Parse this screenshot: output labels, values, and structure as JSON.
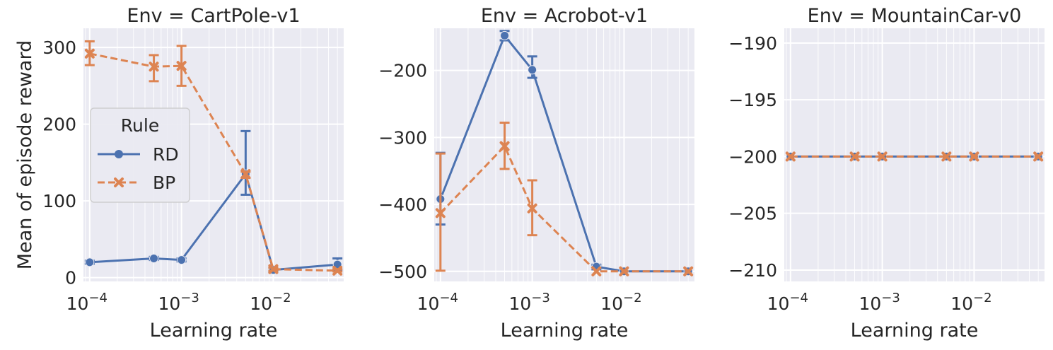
{
  "colors": {
    "background": "#ffffff",
    "panel": "#eaeaf2",
    "grid": "#ffffff",
    "text": "#262626",
    "RD": "#4c72b0",
    "BP": "#dd8452"
  },
  "shared": {
    "xlabel": "Learning rate",
    "ylabel": "Mean of episode reward",
    "xscale": "log",
    "xticks": [
      0.0001,
      0.001,
      0.01
    ],
    "xtick_labels": [
      "10",
      "10",
      "10"
    ],
    "xtick_exponents": [
      "−4",
      "−3",
      "−2"
    ],
    "x_values": [
      0.0001,
      0.0005,
      0.001,
      0.005,
      0.01,
      0.05
    ],
    "legend": {
      "title": "Rule",
      "placement": "center-left",
      "entries": [
        {
          "name": "RD",
          "marker": "circle",
          "style": "solid"
        },
        {
          "name": "BP",
          "marker": "x",
          "style": "dashed"
        }
      ]
    }
  },
  "chart_data": [
    {
      "type": "line",
      "title": "Env = CartPole-v1",
      "xlabel": "Learning rate",
      "ylabel": "Mean of episode reward",
      "xscale": "log",
      "ylim": [
        -5,
        325
      ],
      "yticks": [
        0,
        100,
        200,
        300
      ],
      "ytick_labels": [
        "0",
        "100",
        "200",
        "300"
      ],
      "grid": true,
      "legend": true,
      "series": [
        {
          "name": "RD",
          "x": [
            0.0001,
            0.0005,
            0.001,
            0.005,
            0.01,
            0.05
          ],
          "y": [
            20,
            25,
            23,
            135,
            10,
            17
          ],
          "err_low": [
            18,
            23,
            21,
            108,
            7,
            10
          ],
          "err_high": [
            22,
            27,
            25,
            191,
            13,
            25
          ]
        },
        {
          "name": "BP",
          "x": [
            0.0001,
            0.0005,
            0.001,
            0.005,
            0.01,
            0.05
          ],
          "y": [
            292,
            275,
            276,
            135,
            11,
            9
          ],
          "err_low": [
            277,
            256,
            250,
            130,
            9,
            8
          ],
          "err_high": [
            308,
            290,
            302,
            138,
            13,
            11
          ]
        }
      ]
    },
    {
      "type": "line",
      "title": "Env = Acrobot-v1",
      "xlabel": "Learning rate",
      "xscale": "log",
      "ylim": [
        -515,
        -137
      ],
      "yticks": [
        -500,
        -400,
        -300,
        -200
      ],
      "ytick_labels": [
        "−500",
        "−400",
        "−300",
        "−200"
      ],
      "grid": true,
      "legend": false,
      "series": [
        {
          "name": "RD",
          "x": [
            0.0001,
            0.0005,
            0.001,
            0.005,
            0.01,
            0.05
          ],
          "y": [
            -392,
            -148,
            -199,
            -493,
            -500,
            -500
          ],
          "err_low": [
            -430,
            -155,
            -211,
            -497,
            -500,
            -500
          ],
          "err_high": [
            -323,
            -141,
            -179,
            -490,
            -500,
            -500
          ]
        },
        {
          "name": "BP",
          "x": [
            0.0001,
            0.0005,
            0.001,
            0.005,
            0.01,
            0.05
          ],
          "y": [
            -413,
            -313,
            -406,
            -500,
            -500,
            -500
          ],
          "err_low": [
            -499,
            -347,
            -446,
            -500,
            -500,
            -500
          ],
          "err_high": [
            -324,
            -278,
            -364,
            -500,
            -500,
            -500
          ]
        }
      ]
    },
    {
      "type": "line",
      "title": "Env = MountainCar-v0",
      "xlabel": "Learning rate",
      "xscale": "log",
      "ylim": [
        -211,
        -188.7
      ],
      "yticks": [
        -210,
        -205,
        -200,
        -195,
        -190
      ],
      "ytick_labels": [
        "−210",
        "−205",
        "−200",
        "−195",
        "−190"
      ],
      "grid": true,
      "legend": false,
      "series": [
        {
          "name": "RD",
          "x": [
            0.0001,
            0.0005,
            0.001,
            0.005,
            0.01,
            0.05
          ],
          "y": [
            -200,
            -200,
            -200,
            -200,
            -200,
            -200
          ]
        },
        {
          "name": "BP",
          "x": [
            0.0001,
            0.0005,
            0.001,
            0.005,
            0.01,
            0.05
          ],
          "y": [
            -200,
            -200,
            -200,
            -200,
            -200,
            -200
          ]
        }
      ]
    }
  ]
}
